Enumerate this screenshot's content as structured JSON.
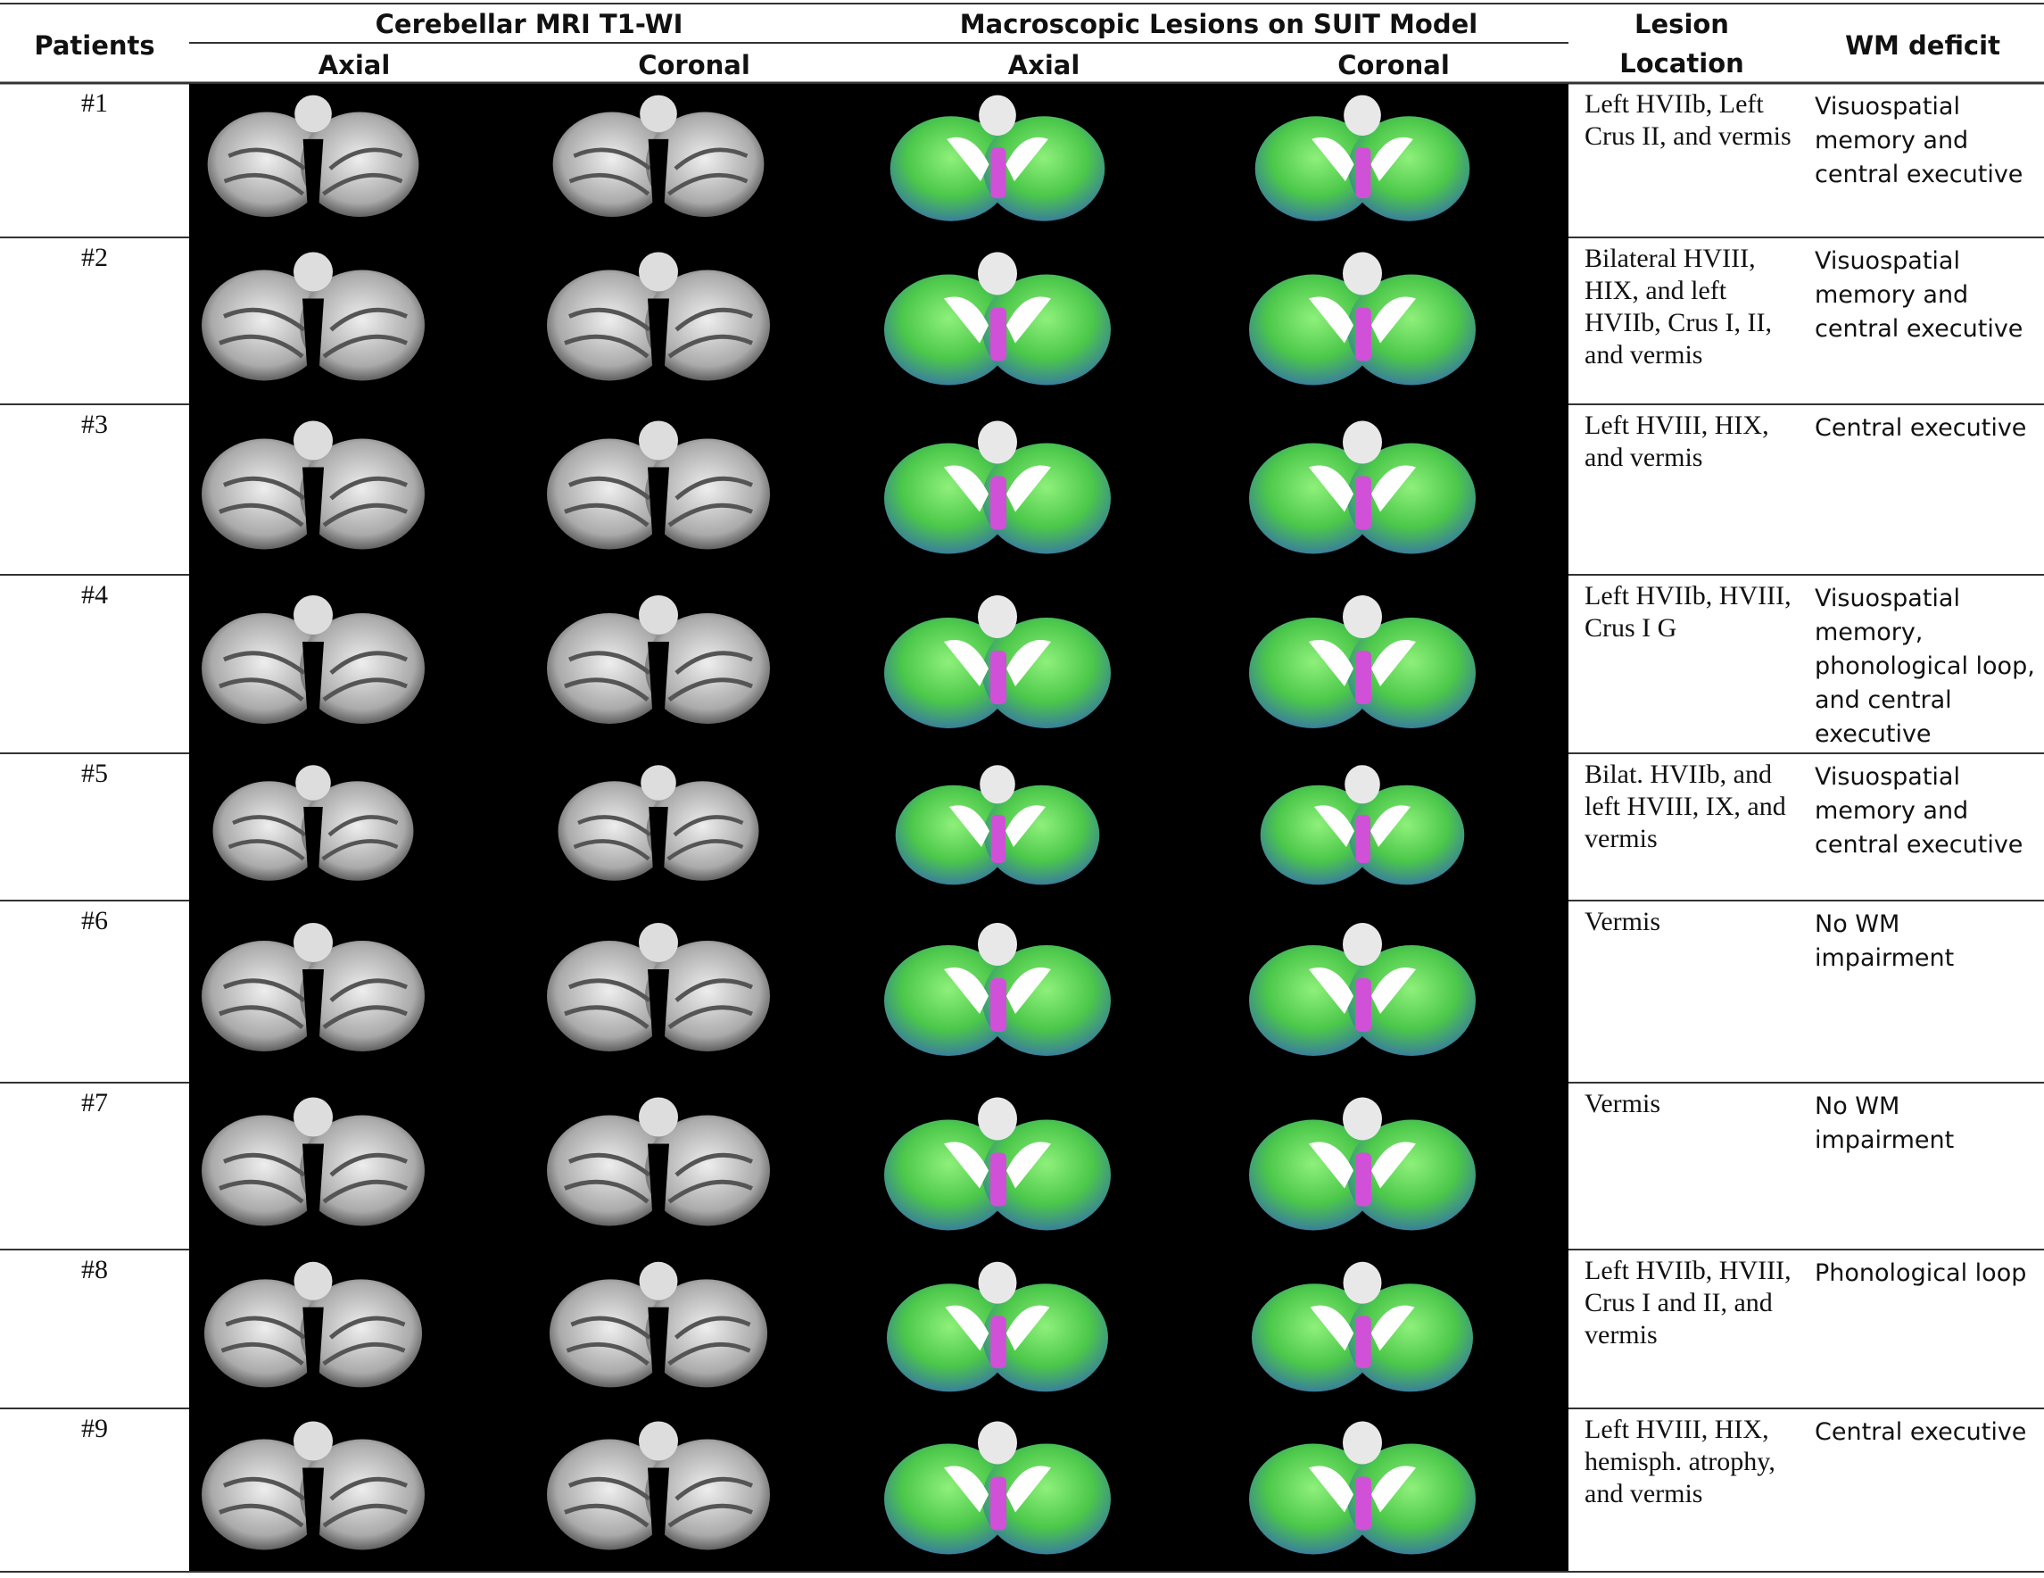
{
  "header": {
    "patients": "Patients",
    "mri": "Cerebellar MRI T1-WI",
    "suit": "Macroscopic Lesions on SUIT Model",
    "location_1": "Lesion",
    "location_2": "Location",
    "deficit": "WM deficit",
    "sub": [
      "Axial",
      "Coronal",
      "Axial",
      "Coronal"
    ]
  },
  "table": {
    "rows": [
      [
        "#1",
        "Left HVIIb, Left Crus II, and vermis",
        "Visuospatial memory and central executive"
      ],
      [
        "#2",
        "Bilateral HVIII, HIX, and left HVIIb, Crus I, II, and vermis",
        "Visuospatial memory and central executive"
      ],
      [
        "#3",
        "Left HVIII, HIX, and vermis",
        "Central executive"
      ],
      [
        "#4",
        "Left HVIIb, HVIII, Crus I G",
        "Visuospatial memory, phonological loop, and central executive"
      ],
      [
        "#5",
        "Bilat. HVIIb, and left HVIII, IX, and vermis",
        "Visuospatial memory and central executive"
      ],
      [
        "#6",
        "Vermis",
        "No WM impairment"
      ],
      [
        "#7",
        "Vermis",
        "No WM impairment"
      ],
      [
        "#8",
        "Left HVIIb, HVIII, Crus I and II, and vermis",
        "Phonological loop"
      ],
      [
        "#9",
        "Left HVIII, HIX, hemisph. atrophy, and vermis",
        "Central executive"
      ]
    ]
  }
}
